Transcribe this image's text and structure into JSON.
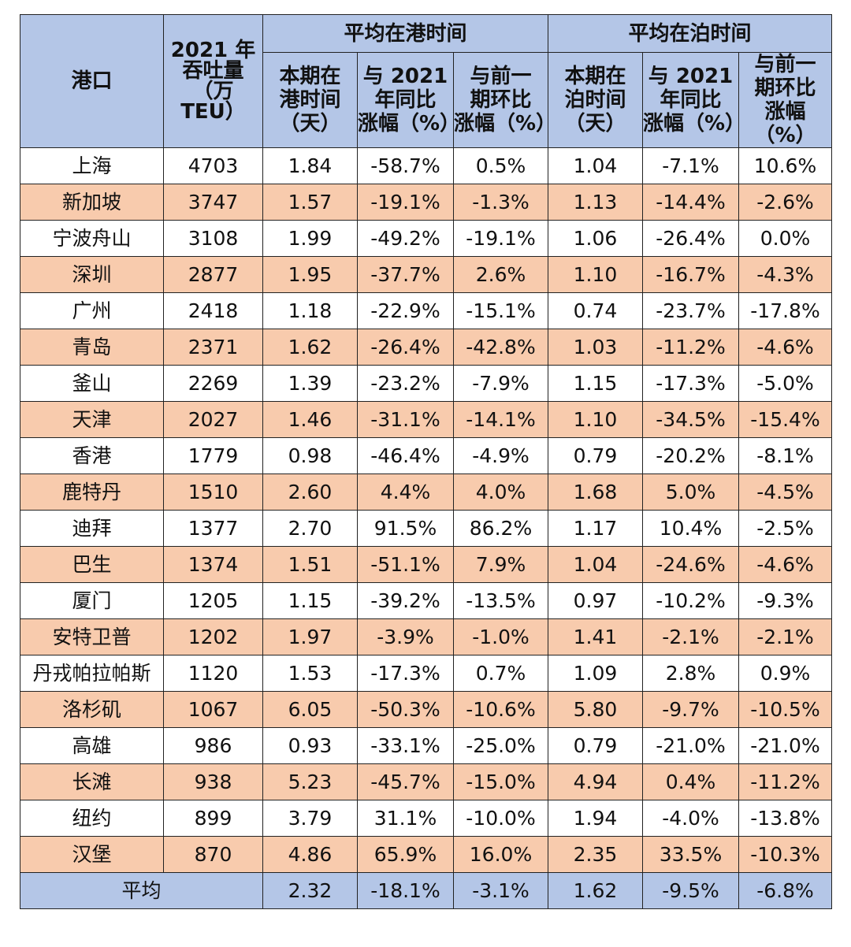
{
  "table": {
    "header": {
      "port": "港口",
      "throughput": "2021 年\n吞吐量\n（万\nTEU）",
      "group1": "平均在港时间",
      "group2": "平均在泊时间",
      "sub": [
        "本期在\n港时间\n（天）",
        "与 2021\n年同比\n涨幅（%）",
        "与前一\n期环比\n涨幅（%）",
        "本期在\n泊时间\n（天）",
        "与 2021\n年同比\n涨幅（%）",
        "与前一\n期环比\n涨幅（%）"
      ]
    },
    "rows": [
      [
        "上海",
        4703,
        "1.84",
        "-58.7%",
        "0.5%",
        "1.04",
        "-7.1%",
        "10.6%"
      ],
      [
        "新加坡",
        3747,
        "1.57",
        "-19.1%",
        "-1.3%",
        "1.13",
        "-14.4%",
        "-2.6%"
      ],
      [
        "宁波舟山",
        3108,
        "1.99",
        "-49.2%",
        "-19.1%",
        "1.06",
        "-26.4%",
        "0.0%"
      ],
      [
        "深圳",
        2877,
        "1.95",
        "-37.7%",
        "2.6%",
        "1.10",
        "-16.7%",
        "-4.3%"
      ],
      [
        "广州",
        2418,
        "1.18",
        "-22.9%",
        "-15.1%",
        "0.74",
        "-23.7%",
        "-17.8%"
      ],
      [
        "青岛",
        2371,
        "1.62",
        "-26.4%",
        "-42.8%",
        "1.03",
        "-11.2%",
        "-4.6%"
      ],
      [
        "釜山",
        2269,
        "1.39",
        "-23.2%",
        "-7.9%",
        "1.15",
        "-17.3%",
        "-5.0%"
      ],
      [
        "天津",
        2027,
        "1.46",
        "-31.1%",
        "-14.1%",
        "1.10",
        "-34.5%",
        "-15.4%"
      ],
      [
        "香港",
        1779,
        "0.98",
        "-46.4%",
        "-4.9%",
        "0.79",
        "-20.2%",
        "-8.1%"
      ],
      [
        "鹿特丹",
        1510,
        "2.60",
        "4.4%",
        "4.0%",
        "1.68",
        "5.0%",
        "-4.5%"
      ],
      [
        "迪拜",
        1377,
        "2.70",
        "91.5%",
        "86.2%",
        "1.17",
        "10.4%",
        "-2.5%"
      ],
      [
        "巴生",
        1374,
        "1.51",
        "-51.1%",
        "7.9%",
        "1.04",
        "-24.6%",
        "-4.6%"
      ],
      [
        "厦门",
        1205,
        "1.15",
        "-39.2%",
        "-13.5%",
        "0.97",
        "-10.2%",
        "-9.3%"
      ],
      [
        "安特卫普",
        1202,
        "1.97",
        "-3.9%",
        "-1.0%",
        "1.41",
        "-2.1%",
        "-2.1%"
      ],
      [
        "丹戎帕拉帕斯",
        1120,
        "1.53",
        "-17.3%",
        "0.7%",
        "1.09",
        "2.8%",
        "0.9%"
      ],
      [
        "洛杉矶",
        1067,
        "6.05",
        "-50.3%",
        "-10.6%",
        "5.80",
        "-9.7%",
        "-10.5%"
      ],
      [
        "高雄",
        986,
        "0.93",
        "-33.1%",
        "-25.0%",
        "0.79",
        "-21.0%",
        "-21.0%"
      ],
      [
        "长滩",
        938,
        "5.23",
        "-45.7%",
        "-15.0%",
        "4.94",
        "0.4%",
        "-11.2%"
      ],
      [
        "纽约",
        899,
        "3.79",
        "31.1%",
        "-10.0%",
        "1.94",
        "-4.0%",
        "-13.8%"
      ],
      [
        "汉堡",
        870,
        "4.86",
        "65.9%",
        "16.0%",
        "2.35",
        "33.5%",
        "-10.3%"
      ]
    ],
    "average": {
      "label": "平均",
      "values": [
        "2.32",
        "-18.1%",
        "-3.1%",
        "1.62",
        "-9.5%",
        "-6.8%"
      ]
    }
  }
}
